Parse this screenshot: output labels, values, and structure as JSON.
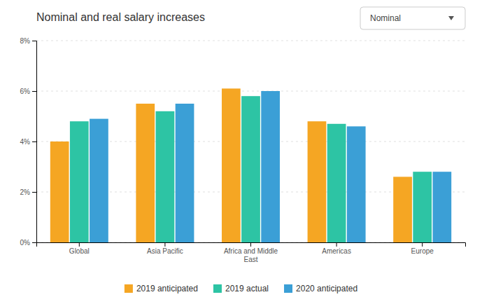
{
  "chart_data": {
    "type": "bar",
    "title": "Nominal and real salary increases",
    "categories": [
      "Global",
      "Asia Pacific",
      "Africa and Middle\nEast",
      "Americas",
      "Europe"
    ],
    "series": [
      {
        "name": "2019 anticipated",
        "color": "#F5A623",
        "values": [
          4.0,
          5.5,
          6.1,
          4.8,
          2.6
        ]
      },
      {
        "name": "2019 actual",
        "color": "#2DC4A4",
        "values": [
          4.8,
          5.2,
          5.8,
          4.7,
          2.8
        ]
      },
      {
        "name": "2020 anticipated",
        "color": "#3B9FD6",
        "values": [
          4.9,
          5.5,
          6.0,
          4.6,
          2.8
        ]
      }
    ],
    "ylim": [
      0,
      8
    ],
    "yticks": [
      {
        "value": 0,
        "label": "0%"
      },
      {
        "value": 2,
        "label": "2%"
      },
      {
        "value": 4,
        "label": "4%"
      },
      {
        "value": 6,
        "label": "6%"
      },
      {
        "value": 8,
        "label": "8%"
      }
    ],
    "grid": true,
    "legend": "bottom",
    "annotations": [
      "Nominal"
    ]
  }
}
